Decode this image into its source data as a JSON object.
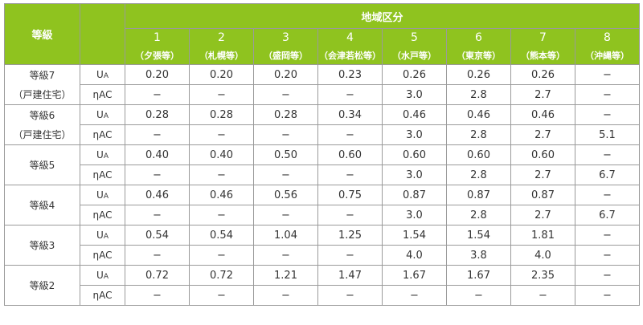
{
  "header": {
    "grade_label": "等級",
    "region_label": "地域区分",
    "regions": [
      {
        "num": "1",
        "area": "（夕張等）"
      },
      {
        "num": "2",
        "area": "（札幌等）"
      },
      {
        "num": "3",
        "area": "（盛岡等）"
      },
      {
        "num": "4",
        "area": "（会津若松等）"
      },
      {
        "num": "5",
        "area": "（水戸等）"
      },
      {
        "num": "6",
        "area": "（東京等）"
      },
      {
        "num": "7",
        "area": "（熊本等）"
      },
      {
        "num": "8",
        "area": "（沖縄等）"
      }
    ]
  },
  "metrics": {
    "ua_main": "U",
    "ua_sub": "A",
    "eta": "ηAC"
  },
  "grades": [
    {
      "label1": "等級7",
      "label2": "（戸建住宅）",
      "ua": [
        "0.20",
        "0.20",
        "0.20",
        "0.23",
        "0.26",
        "0.26",
        "0.26",
        "−"
      ],
      "eta": [
        "−",
        "−",
        "−",
        "−",
        "3.0",
        "2.8",
        "2.7",
        "−"
      ]
    },
    {
      "label1": "等級6",
      "label2": "（戸建住宅）",
      "ua": [
        "0.28",
        "0.28",
        "0.28",
        "0.34",
        "0.46",
        "0.46",
        "0.46",
        "−"
      ],
      "eta": [
        "−",
        "−",
        "−",
        "−",
        "3.0",
        "2.8",
        "2.7",
        "5.1"
      ]
    },
    {
      "label1": "等級5",
      "label2": "",
      "ua": [
        "0.40",
        "0.40",
        "0.50",
        "0.60",
        "0.60",
        "0.60",
        "0.60",
        "−"
      ],
      "eta": [
        "−",
        "−",
        "−",
        "−",
        "3.0",
        "2.8",
        "2.7",
        "6.7"
      ]
    },
    {
      "label1": "等級4",
      "label2": "",
      "ua": [
        "0.46",
        "0.46",
        "0.56",
        "0.75",
        "0.87",
        "0.87",
        "0.87",
        "−"
      ],
      "eta": [
        "−",
        "−",
        "−",
        "−",
        "3.0",
        "2.8",
        "2.7",
        "6.7"
      ]
    },
    {
      "label1": "等級3",
      "label2": "",
      "ua": [
        "0.54",
        "0.54",
        "1.04",
        "1.25",
        "1.54",
        "1.54",
        "1.81",
        "−"
      ],
      "eta": [
        "−",
        "−",
        "−",
        "−",
        "4.0",
        "3.8",
        "4.0",
        "−"
      ]
    },
    {
      "label1": "等級2",
      "label2": "",
      "ua": [
        "0.72",
        "0.72",
        "1.21",
        "1.47",
        "1.67",
        "1.67",
        "2.35",
        "−"
      ],
      "eta": [
        "−",
        "−",
        "−",
        "−",
        "−",
        "−",
        "−",
        "−"
      ]
    }
  ]
}
